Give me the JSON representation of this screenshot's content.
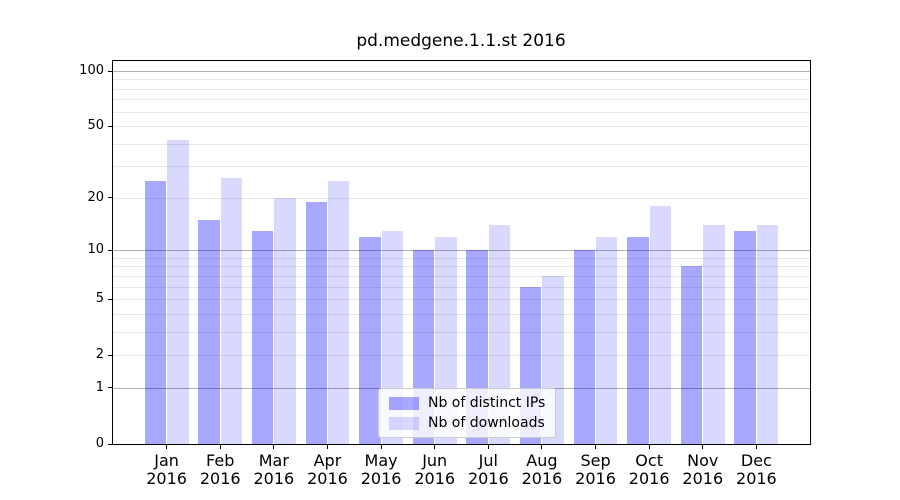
{
  "figure": {
    "title": "pd.medgene.1.1.st 2016"
  },
  "chart_data": {
    "type": "bar",
    "title": "pd.medgene.1.1.st 2016",
    "categories": [
      "Jan",
      "Feb",
      "Mar",
      "Apr",
      "May",
      "Jun",
      "Jul",
      "Aug",
      "Sep",
      "Oct",
      "Nov",
      "Dec"
    ],
    "category_year": "2016",
    "series": [
      {
        "name": "Nb of distinct IPs",
        "color": "rgba(0,0,255,0.34)",
        "values": [
          25,
          15,
          13,
          19,
          12,
          10,
          10,
          6,
          10,
          12,
          8,
          13
        ]
      },
      {
        "name": "Nb of downloads",
        "color": "rgba(0,0,255,0.15)",
        "values": [
          42,
          26,
          20,
          25,
          13,
          12,
          14,
          7,
          12,
          18,
          14,
          14
        ]
      }
    ],
    "yscale": "log1p",
    "y_ticks": [
      100,
      50,
      20,
      10,
      5,
      2,
      1,
      0
    ],
    "ylim": [
      0,
      113
    ],
    "xlabel": "",
    "ylabel": "",
    "grid": true,
    "legend_position": "lower center"
  },
  "colors": {
    "major_grid": "#b0b0b0",
    "minor_grid": "#e8e8e8",
    "spine": "#000000",
    "text": "#000000",
    "legend_border": "#cccccc"
  }
}
